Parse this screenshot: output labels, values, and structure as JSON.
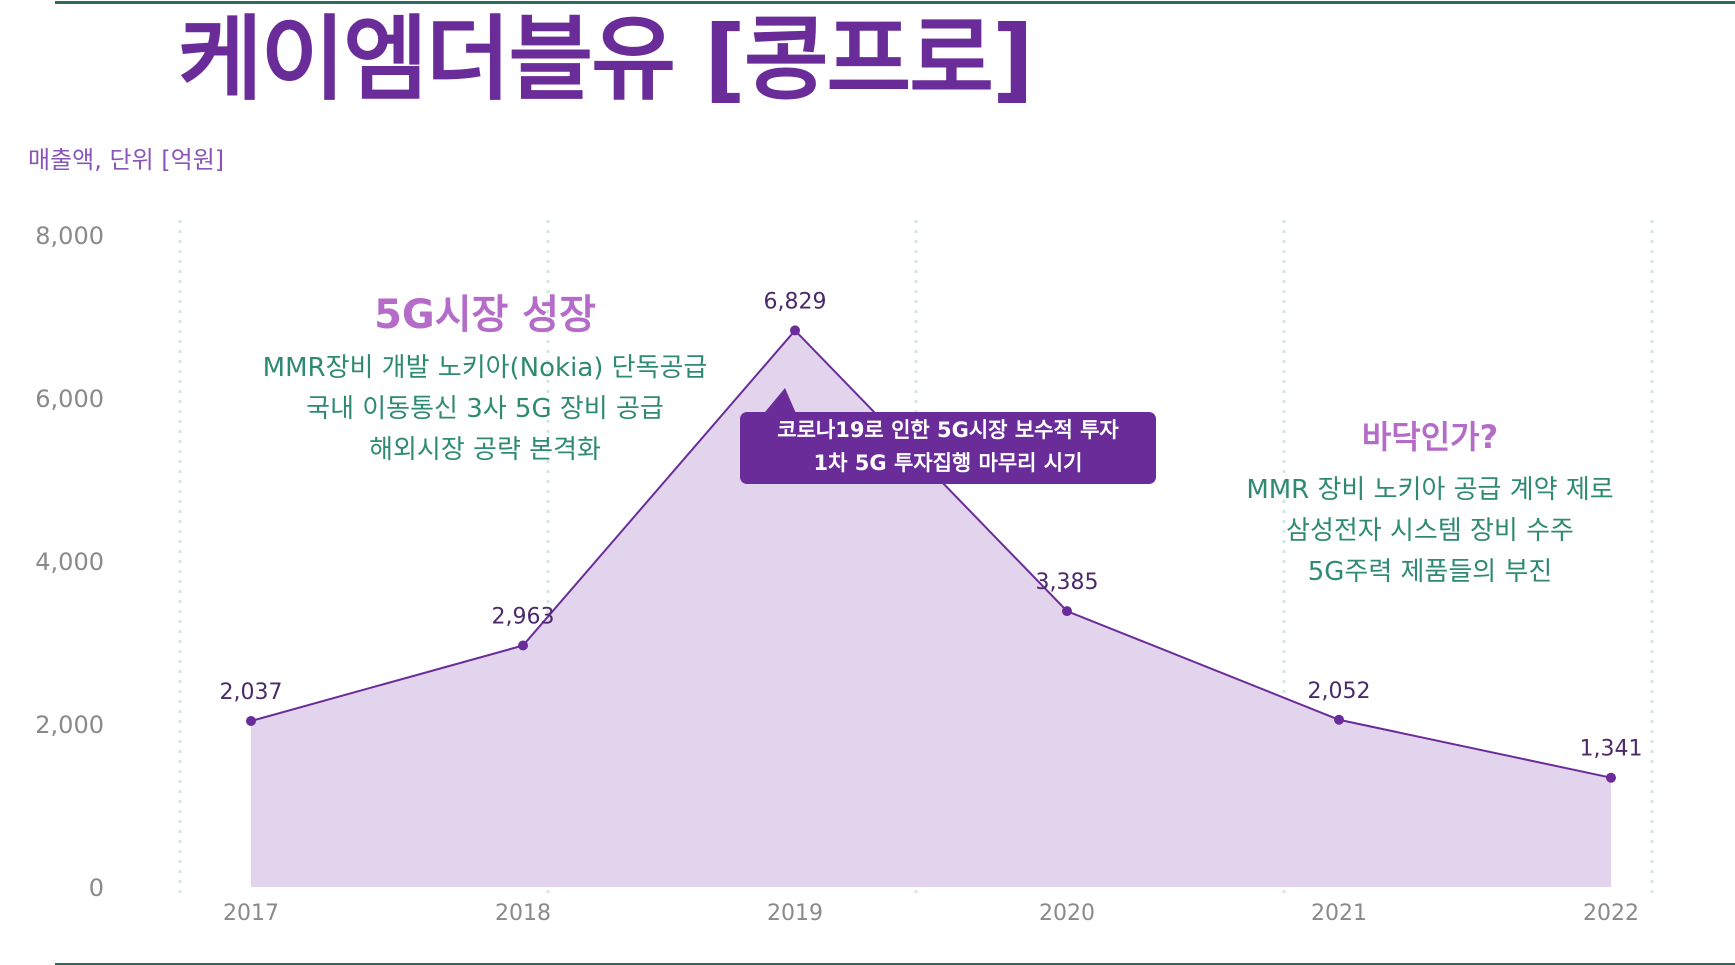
{
  "title": "케이엠더블유 [콩프로]",
  "unit_label": "매출액, 단위 [억원]",
  "colors": {
    "accent": "#6a2c98",
    "line": "#6a2c98",
    "fill": "#e3d4ed",
    "annotation_green": "#2f8a74",
    "annotation_pink": "#b56cc8",
    "rule": "#2e6b5e"
  },
  "annotations": {
    "growth": {
      "title": "5G시장 성장",
      "lines": [
        "MMR장비 개발 노키아(Nokia) 단독공급",
        "국내 이동통신 3사 5G 장비 공급",
        "해외시장 공략 본격화"
      ]
    },
    "callout": {
      "lines": [
        "코로나19로 인한 5G시장 보수적 투자",
        "1차 5G 투자집행 마무리 시기"
      ]
    },
    "bottom": {
      "title": "바닥인가?",
      "lines": [
        "MMR 장비 노키아 공급 계약 제로",
        "삼성전자 시스템 장비 수주",
        "5G주력 제품들의 부진"
      ]
    }
  },
  "chart_data": {
    "type": "area",
    "title": "",
    "categories": [
      "2017",
      "2018",
      "2019",
      "2020",
      "2021",
      "2022"
    ],
    "values": [
      2037,
      2963,
      6829,
      3385,
      2052,
      1341
    ],
    "value_labels": [
      "2,037",
      "2,963",
      "6,829",
      "3,385",
      "2,052",
      "1,341"
    ],
    "yticks": [
      0,
      2000,
      4000,
      6000,
      8000
    ],
    "ytick_labels": [
      "0",
      "2,000",
      "4,000",
      "6,000",
      "8,000"
    ],
    "ylim": [
      0,
      8000
    ],
    "xlabel": "",
    "ylabel": "매출액, 단위 [억원]"
  }
}
